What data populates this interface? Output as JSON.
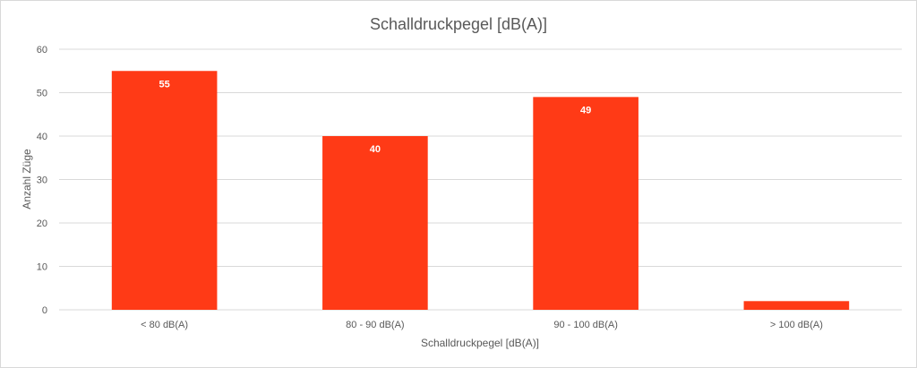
{
  "chart_data": {
    "type": "bar",
    "title": "Schalldruckpegel [dB(A)]",
    "xlabel": "Schalldruckpegel [dB(A)]",
    "ylabel": "Anzahl Züge",
    "categories": [
      "< 80 dB(A)",
      "80 - 90 dB(A)",
      "90 - 100 dB(A)",
      "> 100 dB(A)"
    ],
    "values": [
      55,
      40,
      49,
      2
    ],
    "data_labels": [
      "55",
      "40",
      "49",
      ""
    ],
    "ylim": [
      0,
      60
    ],
    "yticks": [
      0,
      10,
      20,
      30,
      40,
      50,
      60
    ],
    "grid": true,
    "legend": "none",
    "bar_color": "#ff3a16",
    "gridline_color": "#d9d9d9"
  }
}
